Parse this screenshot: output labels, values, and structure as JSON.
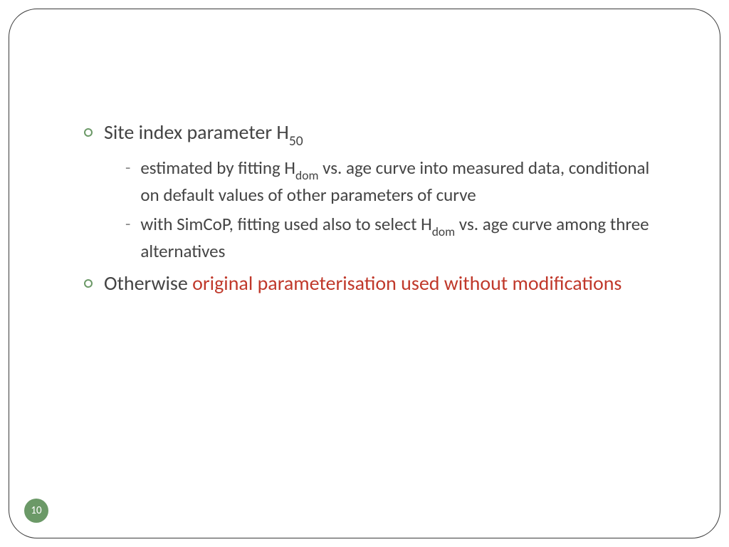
{
  "colors": {
    "bullet_border": "#6b9967",
    "text": "#444444",
    "dash": "#888888",
    "highlight": "#c0392b",
    "badge_bg": "#6b9967",
    "badge_text": "#ffffff",
    "frame_border": "#3a3a3a"
  },
  "typography": {
    "bullet_fontsize": 28,
    "sub_fontsize": 25,
    "badge_fontsize": 15
  },
  "bullet1": {
    "text_pre": "Site index parameter H",
    "sub": "50"
  },
  "sub1": {
    "pre": "estimated by fitting H",
    "sub": "dom",
    "post": " vs. age curve into measured data, conditional on default values of other parameters of curve"
  },
  "sub2": {
    "pre": "with SimCoP, fitting used  also to select H",
    "sub": "dom",
    "post": " vs. age curve among three alternatives"
  },
  "bullet2": {
    "plain": "Otherwise ",
    "highlight": "original parameterisation used without modifications"
  },
  "page_number": "10"
}
